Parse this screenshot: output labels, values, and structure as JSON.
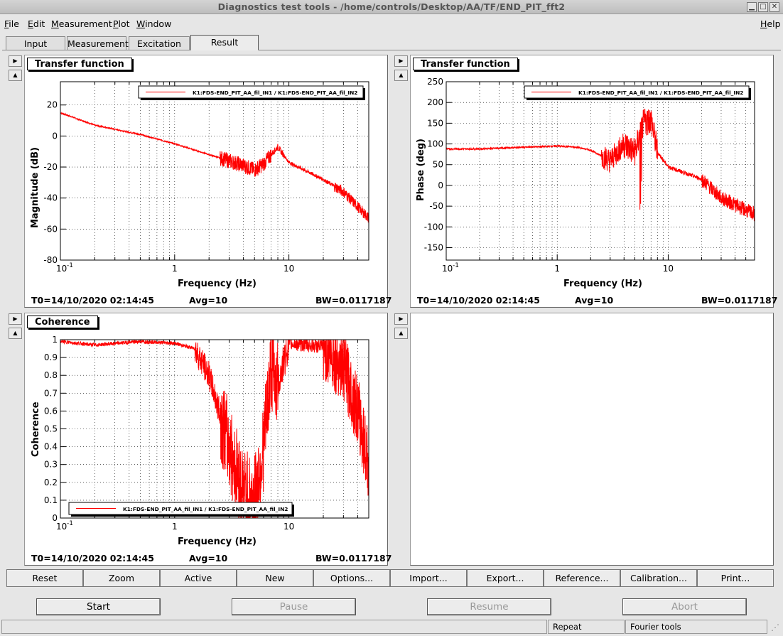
{
  "window": {
    "title": "Diagnostics test tools - /home/controls/Desktop/AA/TF/END_PIT_fft2"
  },
  "menu": {
    "items": [
      "File",
      "Edit",
      "Measurement",
      "Plot",
      "Window"
    ],
    "help": "Help"
  },
  "tabs": [
    "Input",
    "Measurement",
    "Excitation",
    "Result"
  ],
  "active_tab": "Result",
  "plots": [
    {
      "panel_title": "Transfer function",
      "legend": "K1:FDS-END_PIT_AA_fil_IN1 / K1:FDS-END_PIT_AA_fil_IN2",
      "ylabel": "Magnitude (dB)",
      "xlabel": "Frequency (Hz)",
      "yticks": [
        "20",
        "0",
        "-20",
        "-40",
        "-60",
        "-80"
      ],
      "xticks": [
        "10",
        "-1",
        "1",
        "10"
      ],
      "footer": {
        "t0": "T0=14/10/2020 02:14:45",
        "avg": "Avg=10",
        "bw": "BW=0.0117187"
      }
    },
    {
      "panel_title": "Transfer function",
      "legend": "K1:FDS-END_PIT_AA_fil_IN1 / K1:FDS-END_PIT_AA_fil_IN2",
      "ylabel": "Phase (deg)",
      "xlabel": "Frequency (Hz)",
      "yticks": [
        "250",
        "200",
        "150",
        "100",
        "50",
        "0",
        "-50",
        "-100",
        "-150"
      ],
      "xticks": [
        "10",
        "-1",
        "1",
        "10"
      ],
      "footer": {
        "t0": "T0=14/10/2020 02:14:45",
        "avg": "Avg=10",
        "bw": "BW=0.0117187"
      }
    },
    {
      "panel_title": "Coherence",
      "legend": "K1:FDS-END_PIT_AA_fil_IN1 / K1:FDS-END_PIT_AA_fil_IN2",
      "ylabel": "Coherence",
      "xlabel": "Frequency (Hz)",
      "yticks": [
        "1",
        "0.9",
        "0.8",
        "0.7",
        "0.6",
        "0.5",
        "0.4",
        "0.3",
        "0.2",
        "0.1",
        "0"
      ],
      "xticks": [
        "10",
        "-1",
        "1",
        "10"
      ],
      "footer": {
        "t0": "T0=14/10/2020 02:14:45",
        "avg": "Avg=10",
        "bw": "BW=0.0117187"
      }
    }
  ],
  "chart_data": [
    {
      "type": "line",
      "title": "Transfer function",
      "xlabel": "Frequency (Hz)",
      "ylabel": "Magnitude (dB)",
      "xscale": "log",
      "xlim": [
        0.1,
        50
      ],
      "ylim": [
        -80,
        35
      ],
      "legend_position": "top-right",
      "grid": true,
      "series": [
        {
          "name": "K1:FDS-END_PIT_AA_fil_IN1 / K1:FDS-END_PIT_AA_fil_IN2",
          "color": "#ff0000",
          "x": [
            0.1,
            0.2,
            0.5,
            1,
            2,
            3,
            4,
            5,
            6,
            7,
            8,
            10,
            20,
            30,
            50
          ],
          "y": [
            15,
            7,
            1,
            -5,
            -12,
            -16,
            -19,
            -22,
            -18,
            -12,
            -7,
            -17,
            -28,
            -36,
            -53
          ]
        }
      ]
    },
    {
      "type": "line",
      "title": "Transfer function",
      "xlabel": "Frequency (Hz)",
      "ylabel": "Phase (deg)",
      "xscale": "log",
      "xlim": [
        0.1,
        60
      ],
      "ylim": [
        -180,
        250
      ],
      "legend_position": "top-right",
      "grid": true,
      "series": [
        {
          "name": "K1:FDS-END_PIT_AA_fil_IN1 / K1:FDS-END_PIT_AA_fil_IN2",
          "color": "#ff0000",
          "x": [
            0.1,
            0.2,
            0.5,
            1,
            1.5,
            2,
            3,
            4,
            5,
            6,
            7,
            8,
            10,
            20,
            30,
            60
          ],
          "y": [
            88,
            88,
            92,
            95,
            92,
            85,
            60,
            100,
            80,
            150,
            160,
            80,
            45,
            15,
            -30,
            -70
          ]
        }
      ]
    },
    {
      "type": "line",
      "title": "Coherence",
      "xlabel": "Frequency (Hz)",
      "ylabel": "Coherence",
      "xscale": "log",
      "xlim": [
        0.1,
        50
      ],
      "ylim": [
        0,
        1
      ],
      "legend_position": "bottom-center",
      "grid": true,
      "series": [
        {
          "name": "K1:FDS-END_PIT_AA_fil_IN1 / K1:FDS-END_PIT_AA_fil_IN2",
          "color": "#ff0000",
          "x": [
            0.1,
            0.2,
            0.5,
            1,
            1.5,
            2,
            3,
            4,
            5,
            6,
            7,
            8,
            10,
            20,
            30,
            40,
            50
          ],
          "y": [
            0.99,
            0.97,
            0.99,
            0.98,
            0.95,
            0.8,
            0.4,
            0.15,
            0.1,
            0.4,
            0.85,
            0.75,
            0.98,
            0.96,
            0.85,
            0.6,
            0.3
          ]
        }
      ]
    }
  ],
  "toolbar": [
    "Reset",
    "Zoom",
    "Active",
    "New",
    "Options...",
    "Import...",
    "Export...",
    "Reference...",
    "Calibration...",
    "Print..."
  ],
  "controls": {
    "start": "Start",
    "pause": "Pause",
    "resume": "Resume",
    "abort": "Abort"
  },
  "statusbar": {
    "repeat": "Repeat",
    "mode": "Fourier tools"
  }
}
